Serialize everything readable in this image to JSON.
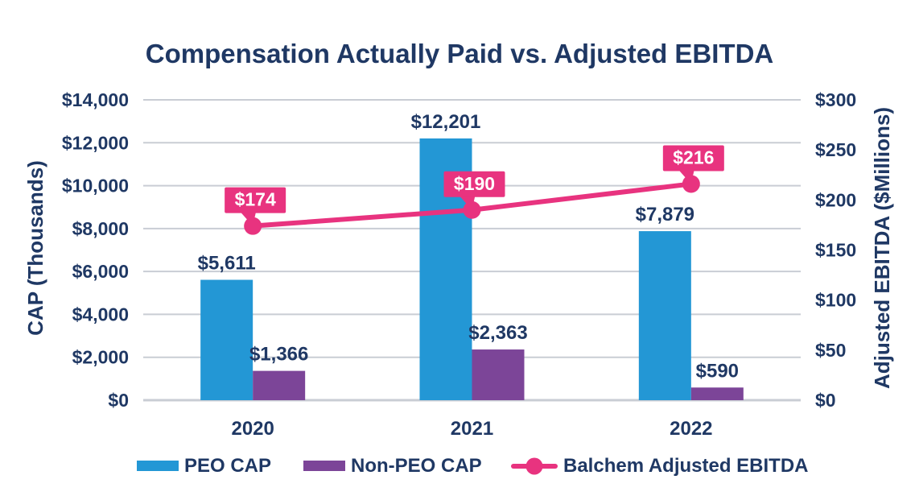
{
  "chart_data": {
    "type": "combo-bar-line",
    "title": "Compensation Actually Paid vs. Adjusted EBITDA",
    "categories": [
      "2020",
      "2021",
      "2022"
    ],
    "series": [
      {
        "name": "PEO CAP",
        "type": "bar",
        "axis": "left",
        "values": [
          5611,
          12201,
          7879
        ],
        "labels": [
          "$5,611",
          "$12,201",
          "$7,879"
        ],
        "color": "#2397D5"
      },
      {
        "name": "Non-PEO CAP",
        "type": "bar",
        "axis": "left",
        "values": [
          1366,
          2363,
          590
        ],
        "labels": [
          "$1,366",
          "$2,363",
          "$590"
        ],
        "color": "#7C4598"
      },
      {
        "name": "Balchem Adjusted EBITDA",
        "type": "line",
        "axis": "right",
        "values": [
          174,
          190,
          216
        ],
        "labels": [
          "$174",
          "$190",
          "$216"
        ],
        "color": "#E8337F"
      }
    ],
    "left_axis": {
      "title": "CAP (Thousands)",
      "min": 0,
      "max": 14000,
      "step": 2000,
      "ticks": [
        "$0",
        "$2,000",
        "$4,000",
        "$6,000",
        "$8,000",
        "$10,000",
        "$12,000",
        "$14,000"
      ]
    },
    "right_axis": {
      "title": "Adjusted EBITDA ($Millions)",
      "min": 0,
      "max": 300,
      "step": 50,
      "ticks": [
        "$0",
        "$50",
        "$100",
        "$150",
        "$200",
        "$250",
        "$300"
      ]
    },
    "grid": true,
    "legend_position": "bottom"
  },
  "colors": {
    "text_navy": "#1F3864",
    "peo_bar": "#2397D5",
    "non_peo_bar": "#7C4598",
    "ebitda_pink": "#E8337F",
    "gridline": "#C9CDD4",
    "callout_text": "#FFFFFF",
    "background": "#FFFFFF"
  },
  "legend": {
    "items": [
      {
        "label": "PEO CAP",
        "swatch": "bar",
        "color": "#2397D5"
      },
      {
        "label": "Non-PEO CAP",
        "swatch": "bar",
        "color": "#7C4598"
      },
      {
        "label": "Balchem Adjusted EBITDA",
        "swatch": "line-marker",
        "color": "#E8337F"
      }
    ]
  }
}
